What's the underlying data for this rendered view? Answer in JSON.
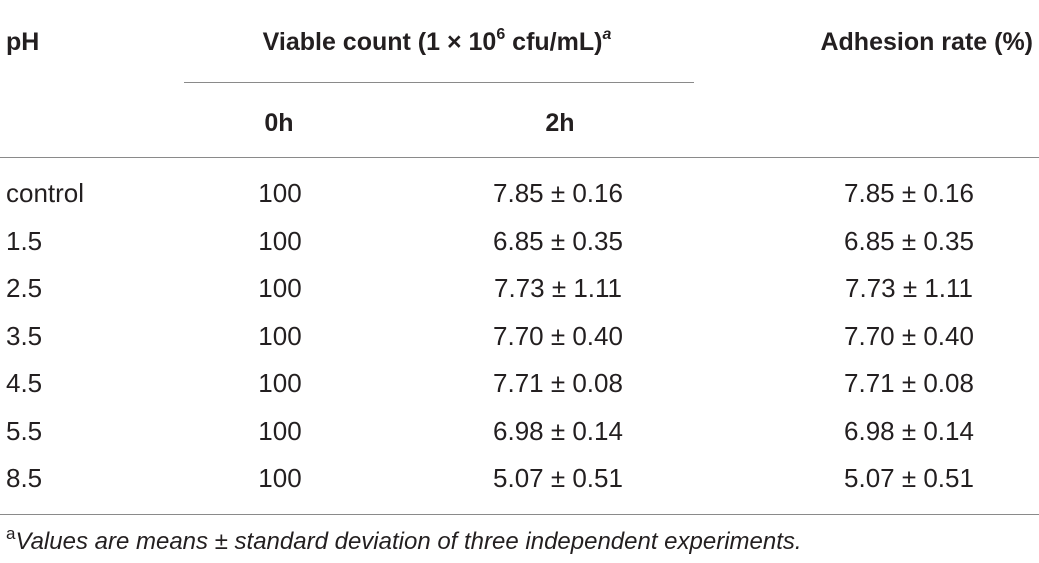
{
  "table": {
    "header": {
      "ph": "pH",
      "viable_prefix": "Viable count (1 × 10",
      "viable_exp": "6",
      "viable_suffix": " cfu/mL)",
      "viable_note": "a",
      "adhesion": "Adhesion rate (%)",
      "sub_0h": "0h",
      "sub_2h": "2h"
    },
    "rows": [
      {
        "ph": "control",
        "h0": "100",
        "h2": "7.85 ± 0.16",
        "rate": "7.85 ± 0.16"
      },
      {
        "ph": "1.5",
        "h0": "100",
        "h2": "6.85 ± 0.35",
        "rate": "6.85 ± 0.35"
      },
      {
        "ph": "2.5",
        "h0": "100",
        "h2": "7.73 ± 1.11",
        "rate": "7.73 ± 1.11"
      },
      {
        "ph": "3.5",
        "h0": "100",
        "h2": "7.70 ± 0.40",
        "rate": "7.70 ± 0.40"
      },
      {
        "ph": "4.5",
        "h0": "100",
        "h2": "7.71 ± 0.08",
        "rate": "7.71 ± 0.08"
      },
      {
        "ph": "5.5",
        "h0": "100",
        "h2": "6.98 ± 0.14",
        "rate": "6.98 ± 0.14"
      },
      {
        "ph": "8.5",
        "h0": "100",
        "h2": "5.07 ± 0.51",
        "rate": "5.07 ± 0.51"
      }
    ],
    "footnote": {
      "mark": "a",
      "text": "Values are means ± standard deviation of three independent experiments."
    }
  }
}
